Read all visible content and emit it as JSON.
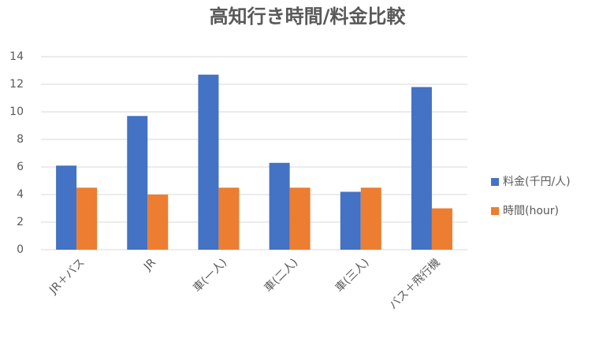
{
  "chart_data": {
    "type": "bar",
    "title": "高知行き時間/料金比較",
    "categories": [
      "JR＋バス",
      "JR",
      "車(一人)",
      "車(二人)",
      "車(三人)",
      "バス＋飛行機"
    ],
    "series": [
      {
        "name": "料金(千円/人)",
        "color": "#4472c4",
        "values": [
          6.1,
          9.7,
          12.7,
          6.3,
          4.2,
          11.8
        ]
      },
      {
        "name": "時間(hour)",
        "color": "#ed7d31",
        "values": [
          4.5,
          4.0,
          4.5,
          4.5,
          4.5,
          3.0
        ]
      }
    ],
    "ylim": [
      0,
      14
    ],
    "yticks": [
      0,
      2,
      4,
      6,
      8,
      10,
      12,
      14
    ],
    "grid": true,
    "legend": "right"
  }
}
